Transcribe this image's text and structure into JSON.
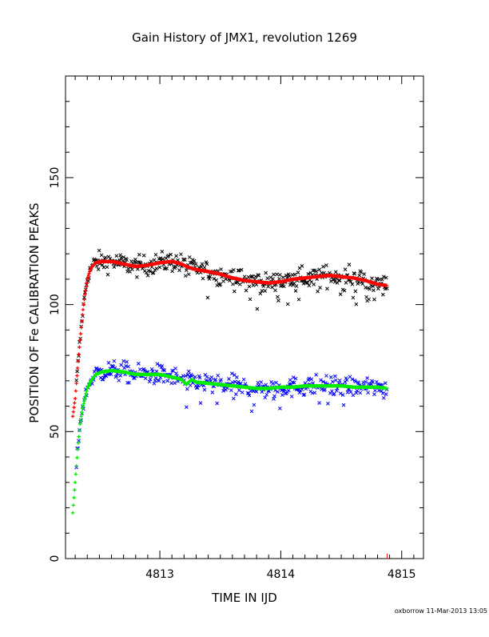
{
  "chart_data": {
    "type": "scatter",
    "title": "Gain History of JMX1, revolution 1269",
    "xlabel": "TIME IN IJD",
    "ylabel": "POSITION OF Fe CALIBRATION PEAKS",
    "xlim": [
      4812.22,
      4815.18
    ],
    "ylim": [
      0,
      190
    ],
    "xticks": [
      "4813",
      "4814",
      "4815"
    ],
    "yticks": [
      "0",
      "50",
      "100",
      "150"
    ],
    "grid": false,
    "legend": "none",
    "colors": {
      "upper_scatter": "#000000",
      "upper_fit": "#ff0000",
      "lower_scatter": "#0000ff",
      "lower_fit": "#00ee00"
    },
    "series": [
      {
        "role": "upper-fit",
        "x": [
          4812.28,
          4812.3,
          4812.32,
          4812.34,
          4812.36,
          4812.38,
          4812.4,
          4812.43,
          4812.47,
          4812.52,
          4812.6,
          4812.7,
          4812.8,
          4812.9,
          4813.0,
          4813.1,
          4813.18,
          4813.22,
          4813.28,
          4813.4,
          4813.5,
          4813.6,
          4813.7,
          4813.8,
          4813.9,
          4814.0,
          4814.1,
          4814.2,
          4814.3,
          4814.4,
          4814.5,
          4814.6,
          4814.7,
          4814.8,
          4814.88
        ],
        "y": [
          56,
          63,
          75,
          86,
          96,
          104,
          110,
          114.5,
          116.5,
          117,
          117,
          116,
          115,
          115.5,
          116.5,
          117,
          116,
          115,
          114,
          113,
          112,
          110.5,
          109.5,
          109,
          108.5,
          109,
          110,
          110.5,
          111,
          111.5,
          111,
          110.5,
          109.5,
          108,
          107.5
        ]
      },
      {
        "role": "lower-fit",
        "x": [
          4812.28,
          4812.3,
          4812.32,
          4812.34,
          4812.36,
          4812.38,
          4812.4,
          4812.43,
          4812.47,
          4812.52,
          4812.6,
          4812.7,
          4812.8,
          4812.9,
          4813.0,
          4813.1,
          4813.18,
          4813.22,
          4813.26,
          4813.3,
          4813.4,
          4813.5,
          4813.6,
          4813.7,
          4813.8,
          4813.9,
          4814.0,
          4814.1,
          4814.2,
          4814.3,
          4814.4,
          4814.5,
          4814.6,
          4814.7,
          4814.8,
          4814.88
        ],
        "y": [
          18,
          30,
          43,
          53,
          59,
          63,
          67,
          70,
          72.5,
          73.5,
          74,
          73.5,
          72.5,
          72.5,
          72.5,
          71.5,
          70.5,
          68.5,
          70.5,
          69.5,
          69,
          68.5,
          68,
          67.5,
          67,
          67,
          67.5,
          67.5,
          68,
          68,
          68,
          68,
          67.5,
          67.5,
          67.5,
          67
        ]
      }
    ]
  },
  "footer": "oxborrow 11-Mar-2013 13:05"
}
